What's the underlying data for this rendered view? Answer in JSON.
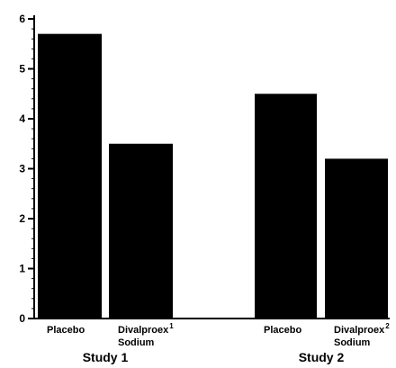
{
  "chart_data": {
    "type": "bar",
    "title": "",
    "xlabel": "",
    "ylabel": "",
    "ylim": [
      0,
      6
    ],
    "yticks": [
      "0",
      "1",
      "2",
      "3",
      "4",
      "5",
      "6"
    ],
    "grid": false,
    "groups": [
      {
        "label": "Study 1",
        "bars": [
          {
            "label": "Placebo",
            "label_line2": "",
            "superscript": "",
            "value": 5.7
          },
          {
            "label": "Divalproex",
            "label_line2": "Sodium",
            "superscript": "1",
            "value": 3.5
          }
        ]
      },
      {
        "label": "Study 2",
        "bars": [
          {
            "label": "Placebo",
            "label_line2": "",
            "superscript": "",
            "value": 4.5
          },
          {
            "label": "Divalproex",
            "label_line2": "Sodium",
            "superscript": "2",
            "value": 3.2
          }
        ]
      }
    ],
    "bar_color": "#000000",
    "axis_color": "#000000"
  }
}
